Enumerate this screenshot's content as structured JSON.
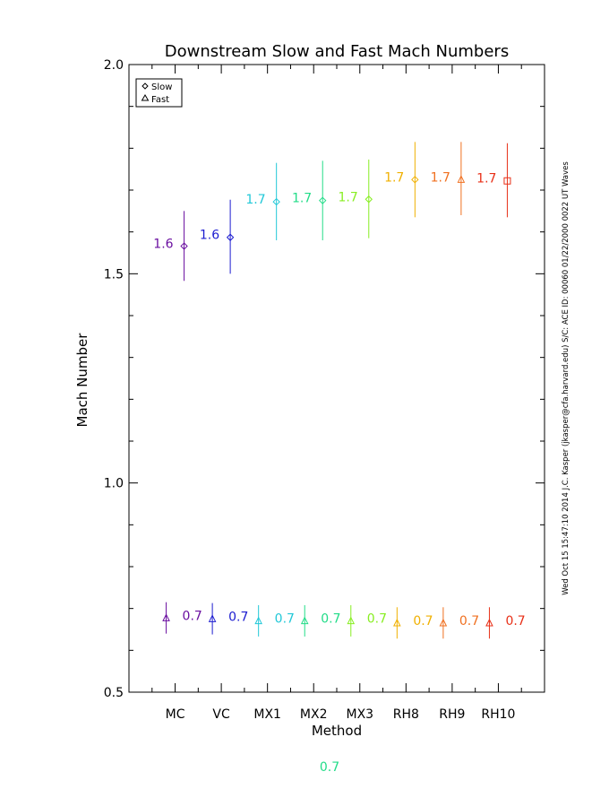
{
  "chart_data": {
    "type": "scatter",
    "title": "Downstream Slow and Fast Mach Numbers",
    "xlabel": "Method",
    "ylabel": "Mach Number",
    "ylim": [
      0.5,
      2.0
    ],
    "y_ticks": [
      "0.5",
      "1.0",
      "1.5",
      "2.0"
    ],
    "categories": [
      "MC",
      "VC",
      "MX1",
      "MX2",
      "MX3",
      "RH8",
      "RH9",
      "RH10"
    ],
    "colors": [
      "#6a0fa0",
      "#1c1cd0",
      "#22c8d8",
      "#22dc88",
      "#88ee22",
      "#f0b000",
      "#f07020",
      "#e83018"
    ],
    "legend": {
      "position": "top-left",
      "items": [
        {
          "label": "Slow",
          "marker": "diamond"
        },
        {
          "label": "Fast",
          "marker": "triangle"
        }
      ]
    },
    "series": [
      {
        "name": "Slow",
        "values": [
          1.566,
          1.587,
          1.672,
          1.675,
          1.678,
          1.725,
          1.725,
          1.722
        ],
        "err_low": [
          1.483,
          1.5,
          1.58,
          1.58,
          1.585,
          1.635,
          1.64,
          1.635
        ],
        "err_high": [
          1.65,
          1.677,
          1.765,
          1.77,
          1.773,
          1.815,
          1.815,
          1.812
        ],
        "markers": [
          "diamond",
          "diamond",
          "diamond",
          "diamond",
          "diamond",
          "diamond",
          "triangle",
          "square"
        ],
        "labels": [
          "1.6",
          "1.6",
          "1.7",
          "1.7",
          "1.7",
          "1.7",
          "1.7",
          "1.7"
        ]
      },
      {
        "name": "Fast",
        "values": [
          0.677,
          0.675,
          0.67,
          0.67,
          0.67,
          0.665,
          0.665,
          0.665
        ],
        "err_low": [
          0.64,
          0.638,
          0.633,
          0.633,
          0.633,
          0.628,
          0.628,
          0.628
        ],
        "err_high": [
          0.715,
          0.713,
          0.708,
          0.708,
          0.708,
          0.703,
          0.703,
          0.703
        ],
        "markers": [
          "triangle",
          "triangle",
          "triangle",
          "triangle",
          "triangle",
          "triangle",
          "triangle",
          "triangle"
        ],
        "labels": [
          "0.7",
          "0.7",
          "0.7",
          "0.7",
          "0.7",
          "0.7",
          "0.7",
          "0.7"
        ]
      }
    ],
    "side_text": "Wed Oct 15 15:47:10 2014  J.C. Kasper (jkasper@cfa.harvard.edu)  S/C: ACE ID: 00060 01/22/2000  0022 UT Waves",
    "footer_value": "0.7",
    "footer_color": "#22dc88"
  }
}
